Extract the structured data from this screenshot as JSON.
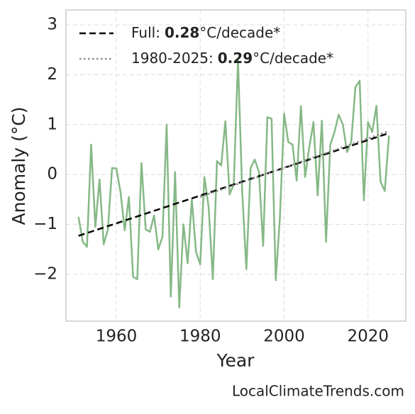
{
  "chart_data": {
    "type": "line",
    "x_label": "Year",
    "y_label": "Anomaly (°C)",
    "footer": "LocalClimateTrends.com",
    "x": [
      1951,
      1952,
      1953,
      1954,
      1955,
      1956,
      1957,
      1958,
      1959,
      1960,
      1961,
      1962,
      1963,
      1964,
      1965,
      1966,
      1967,
      1968,
      1969,
      1970,
      1971,
      1972,
      1973,
      1974,
      1975,
      1976,
      1977,
      1978,
      1979,
      1980,
      1981,
      1982,
      1983,
      1984,
      1985,
      1986,
      1987,
      1988,
      1989,
      1990,
      1991,
      1992,
      1993,
      1994,
      1995,
      1996,
      1997,
      1998,
      1999,
      2000,
      2001,
      2002,
      2003,
      2004,
      2005,
      2006,
      2007,
      2008,
      2009,
      2010,
      2011,
      2012,
      2013,
      2014,
      2015,
      2016,
      2017,
      2018,
      2019,
      2020,
      2021,
      2022,
      2023,
      2024,
      2025
    ],
    "values": [
      -0.85,
      -1.35,
      -1.45,
      0.6,
      -1.05,
      -0.1,
      -1.4,
      -1.1,
      0.13,
      0.12,
      -0.35,
      -1.12,
      -0.45,
      -2.05,
      -2.1,
      0.23,
      -1.1,
      -1.15,
      -0.82,
      -1.5,
      -1.25,
      1.0,
      -2.45,
      0.05,
      -2.67,
      -1.0,
      -1.78,
      -0.5,
      -1.55,
      -1.8,
      -0.05,
      -0.65,
      -2.1,
      0.27,
      0.18,
      1.07,
      -0.4,
      -0.2,
      2.3,
      -0.35,
      -1.9,
      0.13,
      0.3,
      0.05,
      -1.43,
      1.15,
      1.12,
      -2.12,
      -0.85,
      1.22,
      0.65,
      0.6,
      -0.12,
      1.37,
      -0.05,
      0.55,
      1.05,
      -0.42,
      1.08,
      -1.35,
      0.6,
      0.85,
      1.2,
      1.0,
      0.45,
      0.65,
      1.75,
      1.88,
      -0.52,
      1.05,
      0.85,
      1.38,
      -0.15,
      -0.33,
      0.78
    ],
    "color": "#86b886",
    "trend_lines": [
      {
        "name": "Full:",
        "rate": 0.28,
        "unit": "°C/decade*",
        "color": "#000000",
        "style": "dashed",
        "x": [
          1951,
          2025
        ],
        "values": [
          -1.23,
          0.83
        ]
      },
      {
        "name": "1980-2025:",
        "rate": 0.29,
        "unit": "°C/decade*",
        "color": "#888888",
        "style": "dotted",
        "x": [
          1980,
          2025
        ],
        "values": [
          -0.45,
          0.87
        ]
      }
    ],
    "xlim": [
      1948,
      2029
    ],
    "ylim": [
      -2.94,
      3.3
    ],
    "xticks": [
      1960,
      1980,
      2000,
      2020
    ],
    "yticks": [
      {
        "value": -2,
        "label": "−2"
      },
      {
        "value": -1,
        "label": "−1"
      },
      0,
      1,
      2,
      3
    ],
    "grid": true,
    "legend_position": "upper-left"
  }
}
